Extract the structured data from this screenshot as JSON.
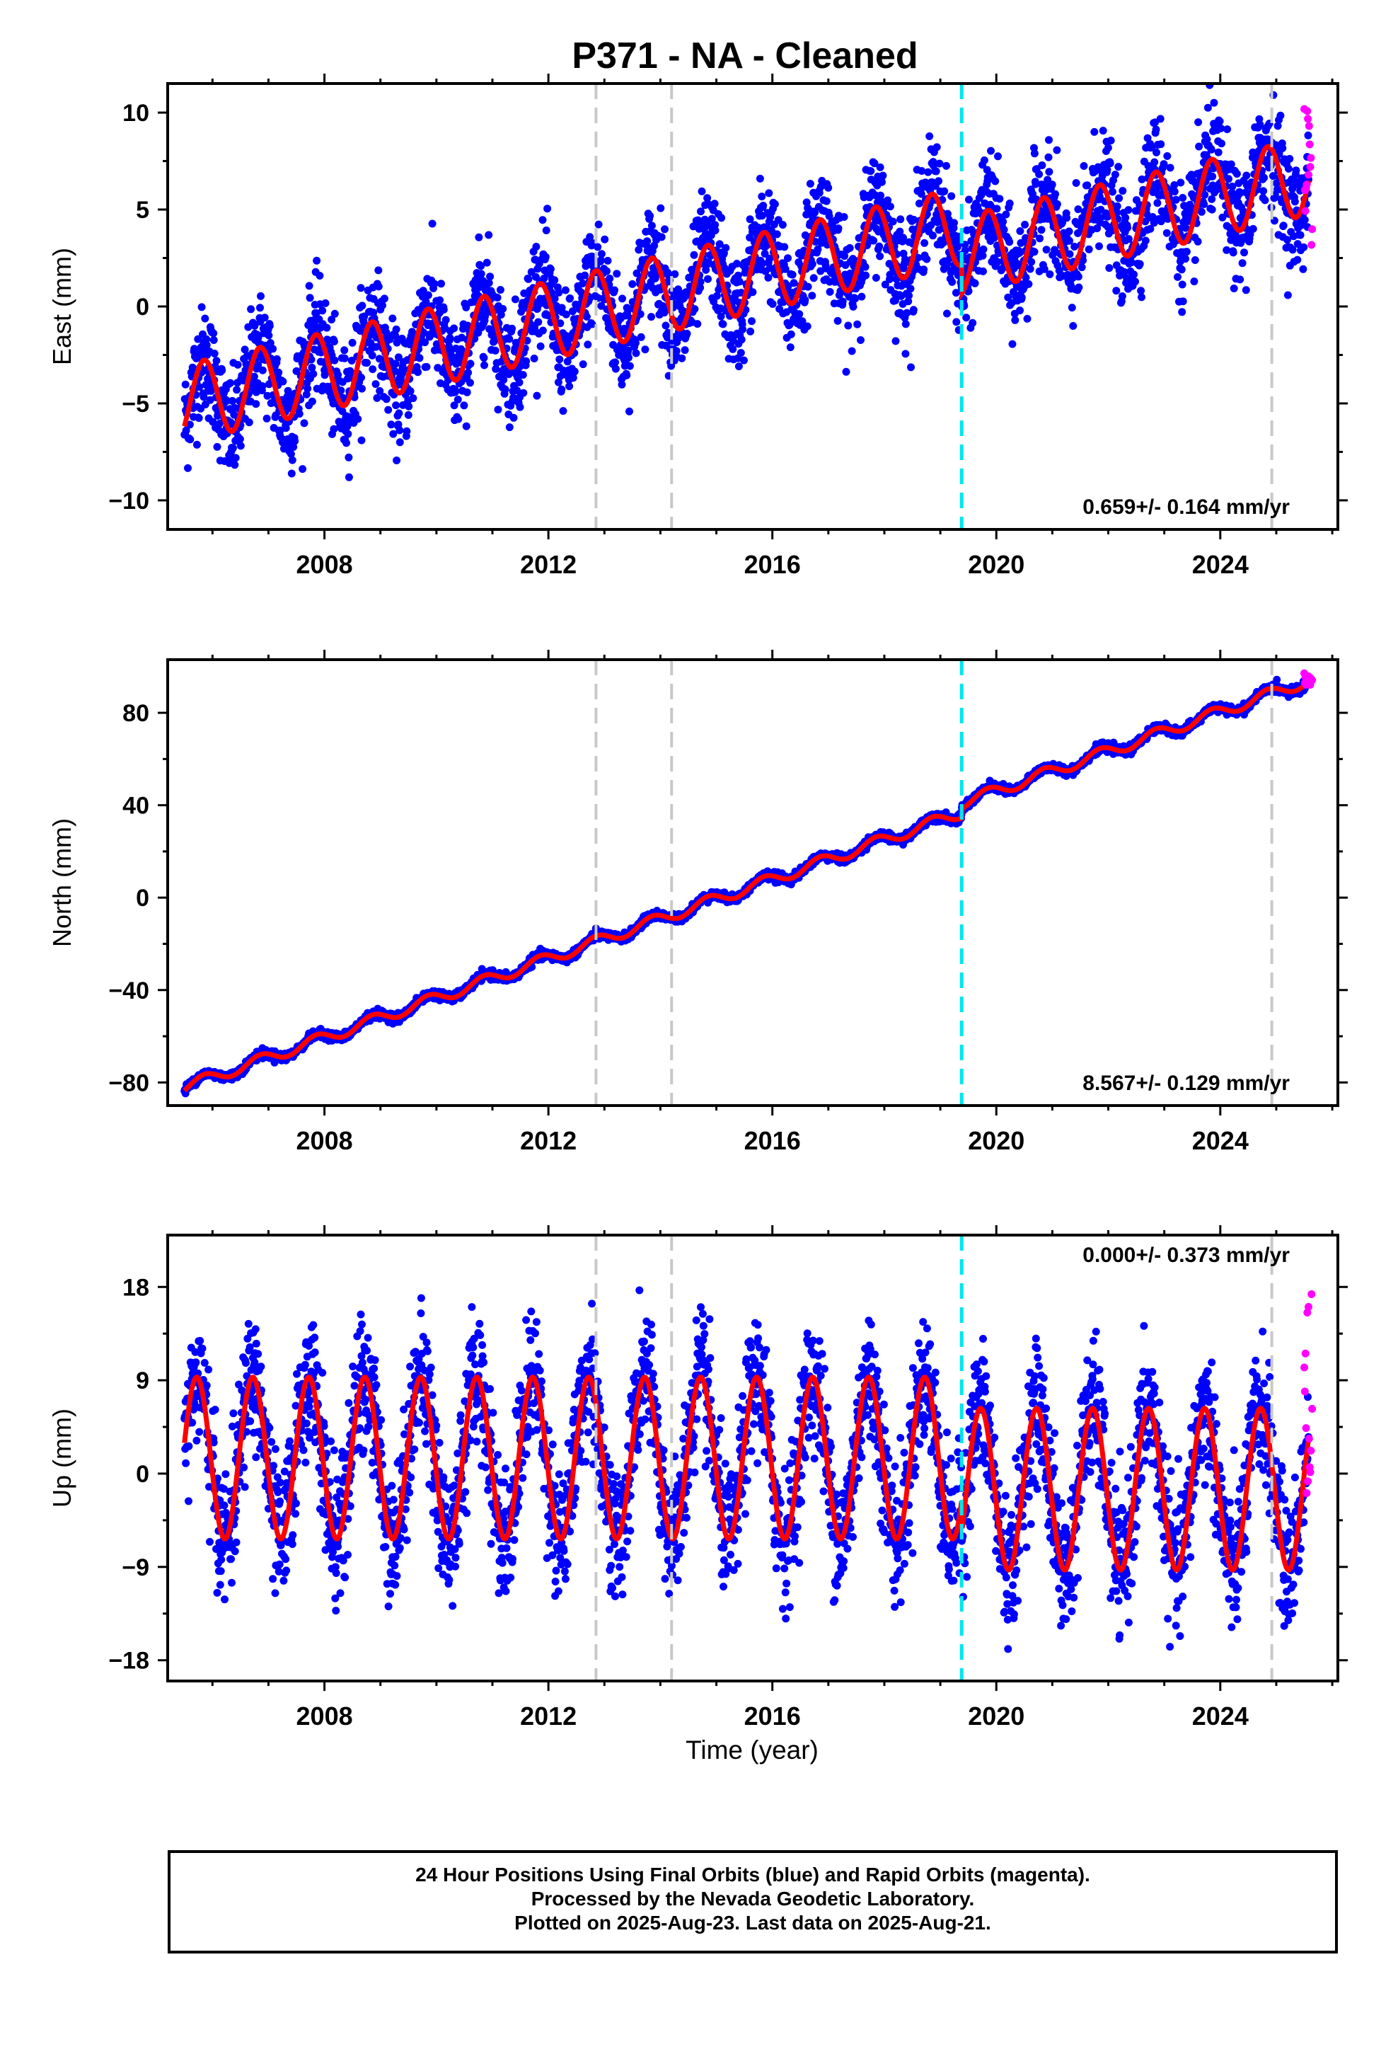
{
  "figure": {
    "title": "P371  - NA - Cleaned",
    "xlabel": "Time (year)",
    "caption_lines": [
      "24 Hour Positions Using Final Orbits (blue) and Rapid Orbits (magenta).",
      "Processed by the Nevada Geodetic Laboratory.",
      "Plotted on 2025-Aug-23. Last data on 2025-Aug-21."
    ],
    "colors": {
      "final_orbits": "#0000ff",
      "rapid_orbits": "#ff00ff",
      "model_fit": "#ff0000",
      "equipment_change_lines": "#c8c8c8",
      "event_line": "#00e5ee"
    }
  },
  "chart_data": [
    {
      "type": "scatter",
      "component": "East",
      "ylabel": "East (mm)",
      "xlim": [
        2005.2,
        2026.1
      ],
      "ylim": [
        -11.5,
        11.5
      ],
      "yticks": [
        -10,
        -5,
        0,
        5,
        10
      ],
      "ytick_labels": [
        "−10",
        "−5",
        "0",
        "5",
        "10"
      ],
      "xticks": [
        2008,
        2012,
        2016,
        2020,
        2024
      ],
      "xtick_labels": [
        "2008",
        "2012",
        "2016",
        "2020",
        "2024"
      ],
      "velocity_label": "0.659+/- 0.164 mm/yr",
      "velocity_label_position": "bottom-right",
      "model": {
        "offset": -5.0,
        "start_year": 2005.5,
        "rate": 0.659,
        "annual_amplitude": 2.0,
        "annual_peak": 2005.85,
        "scatter_sd": 1.4
      },
      "steps": [
        {
          "year": 2019.38,
          "size": -1.5
        }
      ],
      "data_span": [
        2005.5,
        2025.58
      ],
      "rapid_span": [
        2025.5,
        2025.64
      ],
      "rapid_range": [
        3.0,
        11.0
      ]
    },
    {
      "type": "scatter",
      "component": "North",
      "ylabel": "North (mm)",
      "xlim": [
        2005.2,
        2026.1
      ],
      "ylim": [
        -90,
        103
      ],
      "yticks": [
        -80,
        -40,
        0,
        40,
        80
      ],
      "ytick_labels": [
        "−80",
        "−40",
        "0",
        "40",
        "80"
      ],
      "xticks": [
        2008,
        2012,
        2016,
        2020,
        2024
      ],
      "xtick_labels": [
        "2008",
        "2012",
        "2016",
        "2020",
        "2024"
      ],
      "velocity_label": "8.567+/- 0.129 mm/yr",
      "velocity_label_position": "bottom-right",
      "model": {
        "offset": -82.0,
        "start_year": 2005.5,
        "rate": 8.567,
        "annual_amplitude": 2.5,
        "annual_peak": 2005.85,
        "scatter_sd": 0.9
      },
      "steps": [
        {
          "year": 2019.38,
          "size": 4.0
        }
      ],
      "data_span": [
        2005.5,
        2025.58
      ],
      "rapid_span": [
        2025.5,
        2025.64
      ],
      "rapid_range": [
        92.0,
        98.0
      ]
    },
    {
      "type": "scatter",
      "component": "Up",
      "ylabel": "Up (mm)",
      "xlim": [
        2005.2,
        2026.1
      ],
      "ylim": [
        -20,
        23
      ],
      "yticks": [
        -18,
        -9,
        0,
        9,
        18
      ],
      "ytick_labels": [
        "−18",
        "−9",
        "0",
        "9",
        "18"
      ],
      "xticks": [
        2008,
        2012,
        2016,
        2020,
        2024
      ],
      "xtick_labels": [
        "2008",
        "2012",
        "2016",
        "2020",
        "2024"
      ],
      "velocity_label": "0.000+/- 0.373 mm/yr",
      "velocity_label_position": "top-right",
      "model": {
        "offset": 1.5,
        "start_year": 2005.5,
        "rate": 0.0,
        "annual_amplitude": 7.8,
        "annual_peak": 2005.72,
        "scatter_sd": 3.2
      },
      "steps": [
        {
          "year": 2019.38,
          "size": -3.0
        }
      ],
      "data_span": [
        2005.5,
        2025.58
      ],
      "rapid_span": [
        2025.5,
        2025.64
      ],
      "rapid_range": [
        -4.0,
        18.5
      ]
    }
  ],
  "event_lines": {
    "equipment": [
      2012.85,
      2014.2,
      2024.92
    ],
    "earthquake": [
      2019.38
    ]
  }
}
